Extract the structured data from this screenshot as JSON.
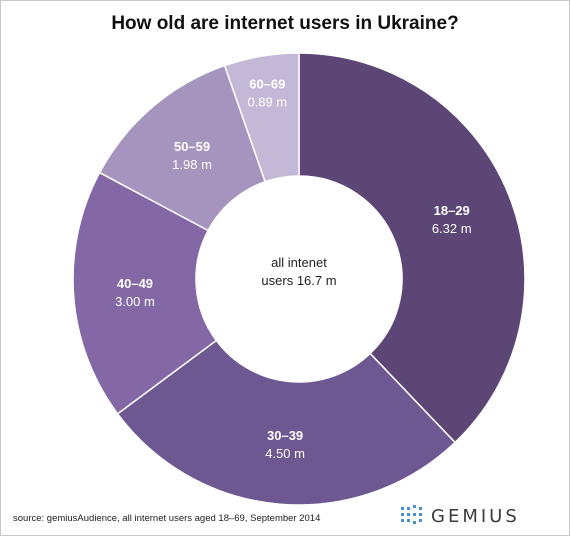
{
  "chart_data": {
    "type": "pie",
    "style": "donut",
    "title": "How old are internet users in Ukraine?",
    "center_label": [
      "all intenet",
      "users 16.7 m"
    ],
    "unit": "m",
    "slices": [
      {
        "label": "18–29",
        "value": 6.32,
        "value_text": "6.32 m",
        "color": "#5b4676"
      },
      {
        "label": "30–39",
        "value": 4.5,
        "value_text": "4.50 m",
        "color": "#6e5891"
      },
      {
        "label": "40–49",
        "value": 3.0,
        "value_text": "3.00 m",
        "color": "#8468a5"
      },
      {
        "label": "50–59",
        "value": 1.98,
        "value_text": "1.98 m",
        "color": "#a594bd"
      },
      {
        "label": "60–69",
        "value": 0.89,
        "value_text": "0.89 m",
        "color": "#c3b8d5"
      }
    ]
  },
  "footer": {
    "source": "source: gemiusAudience, all internet users aged 18–69, September 2014",
    "brand": "GEMIUS",
    "brand_icon": "dot-grid-logo-icon",
    "brand_color": "#4a90c8"
  }
}
